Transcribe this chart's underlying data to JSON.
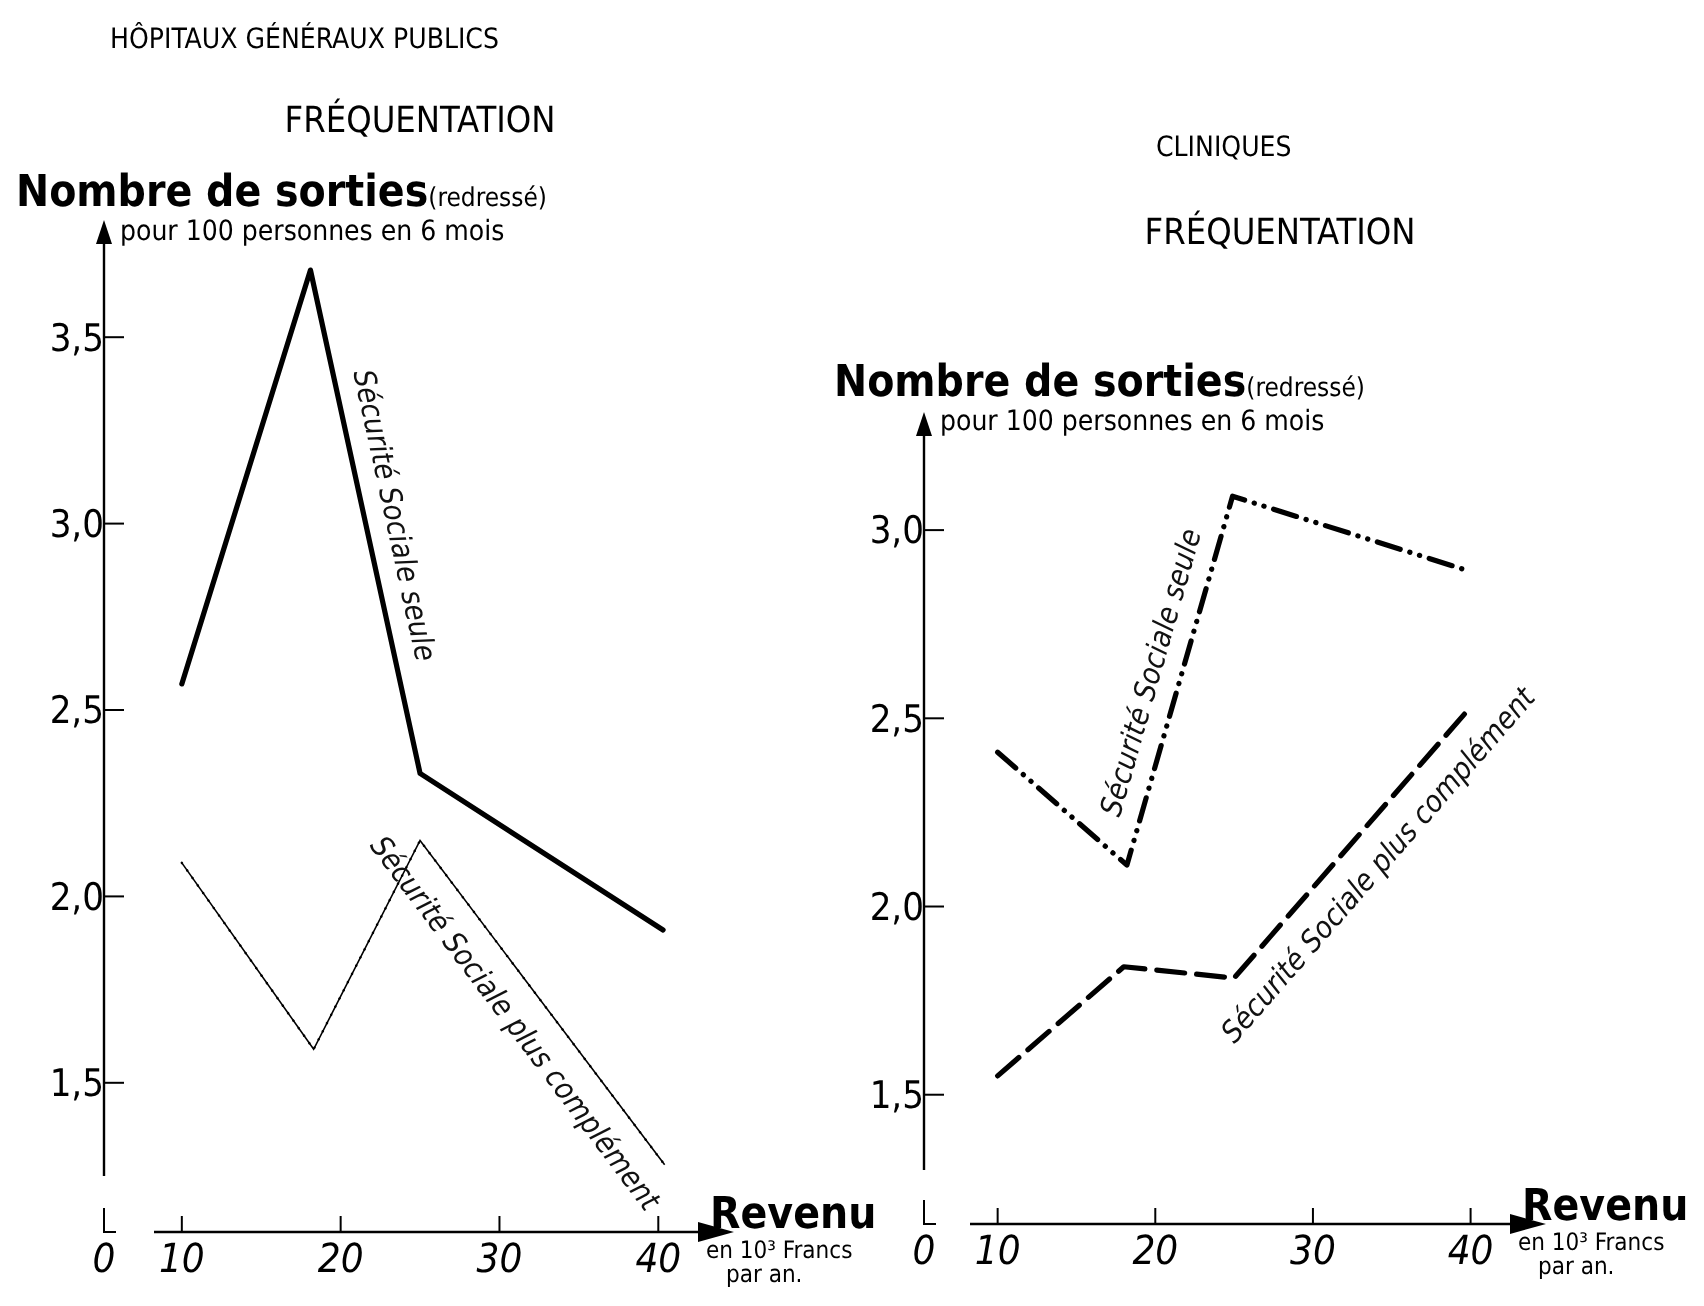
{
  "chart_data": [
    {
      "type": "line",
      "title": "HÔPITAUX GÉNÉRAUX PUBLICS",
      "subtitle": "FRÉQUENTATION",
      "ylabel": "Nombre de sorties(redressé)\npour 100 personnes en 6 mois",
      "xlabel": "Revenu\nen 10³ Francs\npar an.",
      "annotations": [
        "0"
      ],
      "xlim": [
        8.5,
        42.5
      ],
      "xticks": [
        10,
        20,
        30,
        40
      ],
      "ylim": [
        1.25,
        3.75
      ],
      "yticks": [
        {
          "value": 1.5,
          "label": "1,5"
        },
        {
          "value": 2,
          "label": "2,0"
        },
        {
          "value": 2.5,
          "label": "2,5"
        },
        {
          "value": 3,
          "label": "3,0"
        },
        {
          "value": 3.5,
          "label": "3,5"
        }
      ],
      "series": [
        {
          "name": "Sécurité Sociale seule",
          "color": "#000000",
          "line_style": "solid",
          "x": [
            10,
            18.1,
            25,
            40.3
          ],
          "values": [
            2.57,
            3.68,
            2.33,
            1.91
          ]
        },
        {
          "name": "Sécurité Sociale plus complément",
          "color": "#000000",
          "line_style": "dotted",
          "x": [
            10,
            18.3,
            25,
            40.4
          ],
          "values": [
            2.09,
            1.59,
            2.15,
            1.28
          ]
        }
      ]
    },
    {
      "type": "line",
      "title": "CLINIQUES",
      "subtitle": "FRÉQUENTATION",
      "ylabel": "Nombre de sorties(redressé)\npour 100 personnes en 6 mois",
      "xlabel": "Revenu\nen 10³ Francs\npar an.",
      "annotations": [
        "0"
      ],
      "xlim": [
        8.5,
        42.5
      ],
      "xticks": [
        10,
        20,
        30,
        40
      ],
      "ylim": [
        1.3,
        3.25
      ],
      "yticks": [
        {
          "value": 1.5,
          "label": "1,5"
        },
        {
          "value": 2,
          "label": "2,0"
        },
        {
          "value": 2.5,
          "label": "2,5"
        },
        {
          "value": 3,
          "label": "3,0"
        }
      ],
      "series": [
        {
          "name": "Sécurité Sociale seule",
          "color": "#000000",
          "line_style": "dashdot",
          "x": [
            10,
            18.2,
            24.9,
            40
          ],
          "values": [
            2.41,
            2.11,
            3.09,
            2.89
          ]
        },
        {
          "name": "Sécurité Sociale plus complément",
          "color": "#000000",
          "line_style": "dashed",
          "x": [
            10,
            18,
            25,
            40
          ],
          "values": [
            1.55,
            1.84,
            1.81,
            2.53
          ]
        }
      ]
    }
  ]
}
